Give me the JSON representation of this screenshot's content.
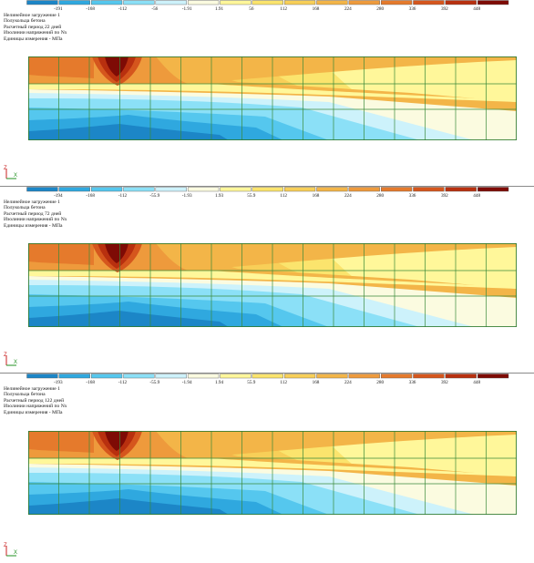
{
  "colors": [
    "#1c86c7",
    "#2fa8df",
    "#55c7ee",
    "#8be0f7",
    "#cdf2fb",
    "#fbfbe0",
    "#fff79a",
    "#fbe46d",
    "#f8cf58",
    "#f3b548",
    "#ee9a3c",
    "#e57a2c",
    "#d5561d",
    "#b8300f",
    "#7e0b05"
  ],
  "panels": [
    {
      "legend_ticks": [
        "-191",
        "-168",
        "-112",
        "-56",
        "-1.91",
        "1.91",
        "56",
        "112",
        "168",
        "224",
        "280",
        "336",
        "392",
        "448"
      ],
      "info": [
        "Нелинейное загружение 1",
        "Полукольца бетона",
        "Расчетный период 22 дней",
        "Изолинии напряжений по Nx",
        "Единицы измерения - МПа"
      ],
      "axis": {
        "z": "Z",
        "x": "X"
      }
    },
    {
      "legend_ticks": [
        "-194",
        "-168",
        "-112",
        "-55.9",
        "-1.93",
        "1.93",
        "55.9",
        "112",
        "168",
        "224",
        "280",
        "336",
        "392",
        "448"
      ],
      "info": [
        "Нелинейное загружение 1",
        "Полукольца бетона",
        "Расчетный период 72 дней",
        "Изолинии напряжений по Nx",
        "Единицы измерения - МПа"
      ],
      "axis": {
        "z": "Z",
        "x": "X"
      }
    },
    {
      "legend_ticks": [
        "-193",
        "-168",
        "-112",
        "-55.9",
        "-1.94",
        "1.94",
        "55.9",
        "112",
        "168",
        "224",
        "280",
        "336",
        "392",
        "448"
      ],
      "info": [
        "Нелинейное загружение 1",
        "Полукольца бетона",
        "Расчетный период 122 дней",
        "Изолинии напряжений по Nx",
        "Единицы измерения - МПа"
      ],
      "axis": {
        "z": "Z",
        "x": "X"
      }
    }
  ]
}
